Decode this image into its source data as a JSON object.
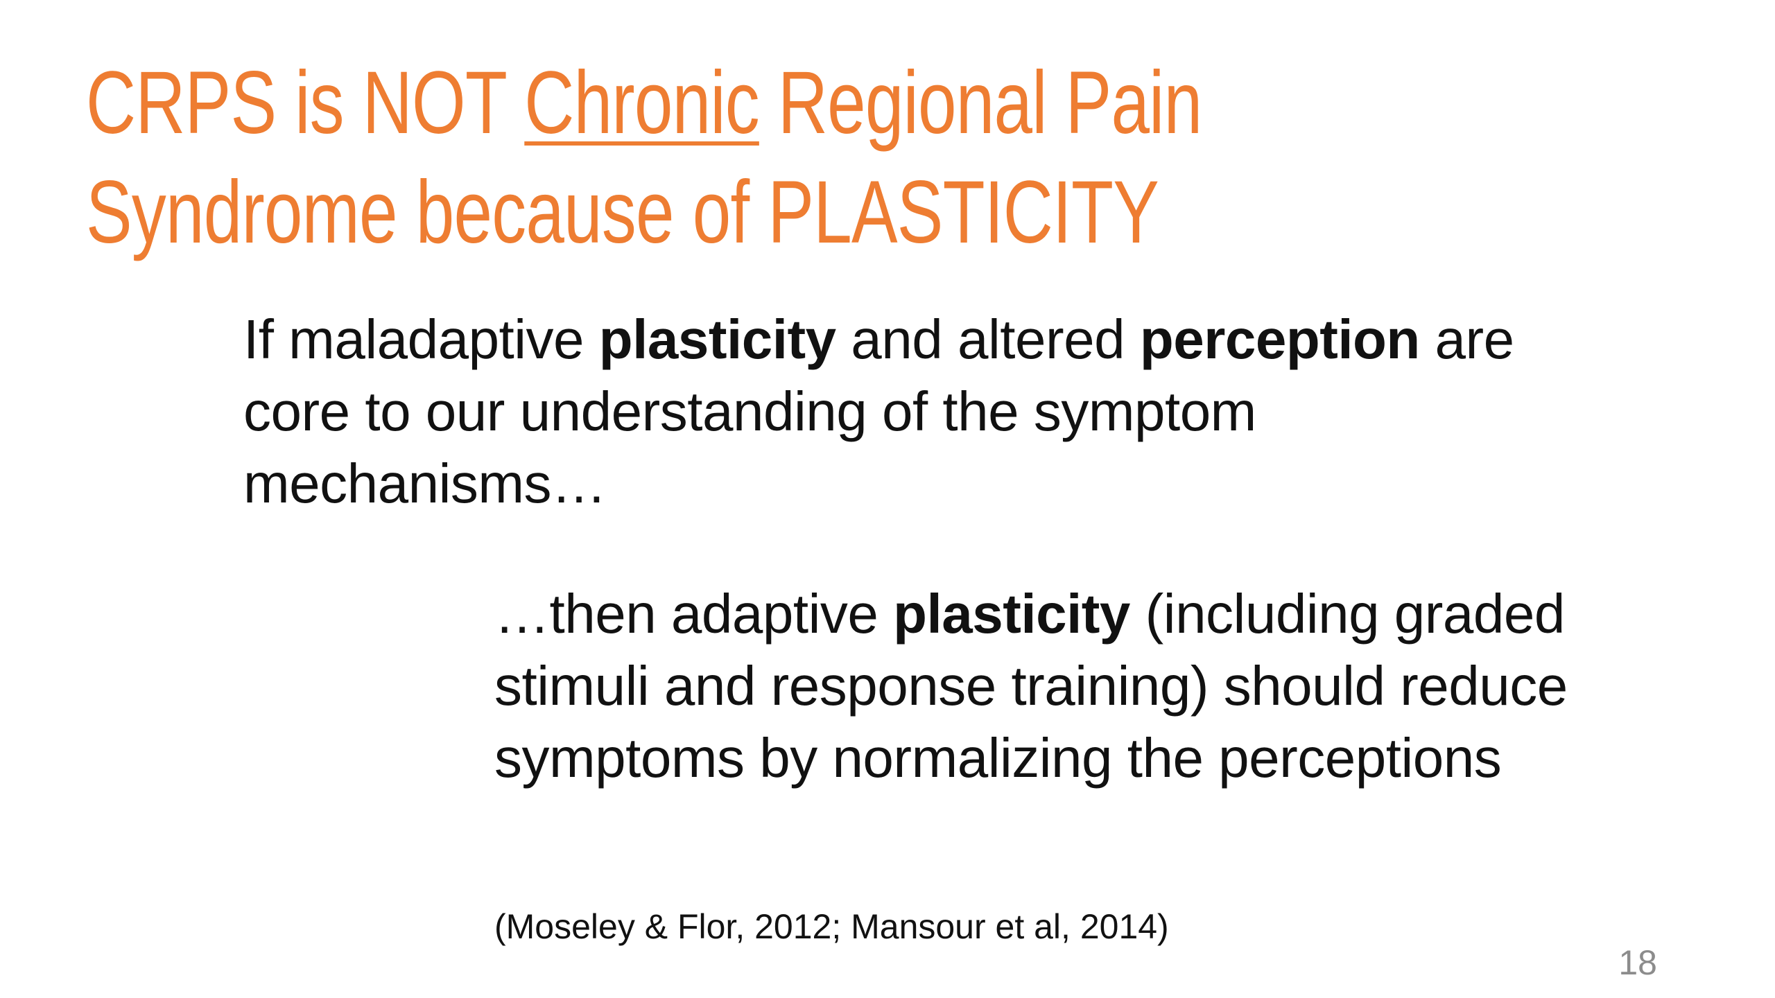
{
  "slide": {
    "title": [
      "CRPS is NOT ",
      "Chronic",
      " Regional Pain",
      "Syndrome because of PLASTICITY"
    ],
    "paragraphs": [
      [
        "If maladaptive ",
        "plasticity",
        " and altered ",
        "perception",
        " are core to our understanding of the symptom mechanisms…"
      ],
      [
        "…then adaptive ",
        "plasticity",
        " (including graded stimuli and response training) should reduce symptoms by normalizing the perceptions"
      ]
    ],
    "citation": "(Moseley & Flor, 2012; Mansour et al, 2014)",
    "page_number": "18"
  }
}
